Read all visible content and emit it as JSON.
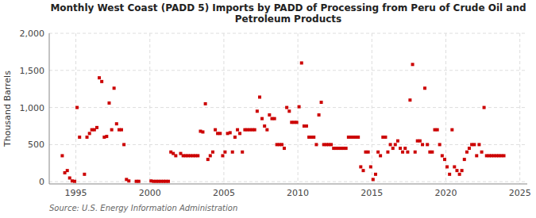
{
  "chart_data": {
    "type": "scatter",
    "title": "Monthly West Coast (PADD 5) Imports by PADD of Processing from Peru of Crude Oil and\nPetroleum Products",
    "ylabel": "Thousand Barrels",
    "source": "Source: U.S. Energy Information Administration",
    "color": "#cc0000",
    "marker": "square",
    "grid": true,
    "xlim": [
      1993.2,
      2025.5
    ],
    "ylim": [
      -30,
      2000
    ],
    "xticks": [
      1995,
      2000,
      2005,
      2010,
      2015,
      2020,
      2025
    ],
    "yticks": [
      0,
      500,
      {
        "value": 1000,
        "label": "1,000"
      },
      {
        "value": 1500,
        "label": "1,500"
      },
      {
        "value": 2000,
        "label": "2,000"
      }
    ],
    "x": [
      1994.08,
      1994.25,
      1994.42,
      1994.58,
      1994.75,
      1994.92,
      1995.08,
      1995.25,
      1995.58,
      1995.75,
      1995.92,
      1996.08,
      1996.25,
      1996.42,
      1996.58,
      1996.75,
      1996.92,
      1997.08,
      1997.25,
      1997.42,
      1997.58,
      1997.75,
      1997.92,
      1998.08,
      1998.25,
      1998.42,
      1998.58,
      1999.08,
      1999.25,
      2000.08,
      2000.25,
      2000.42,
      2000.58,
      2000.75,
      2000.92,
      2001.08,
      2001.25,
      2001.42,
      2001.58,
      2001.75,
      2002.08,
      2002.25,
      2002.42,
      2002.58,
      2002.75,
      2002.92,
      2003.08,
      2003.25,
      2003.42,
      2003.58,
      2003.75,
      2003.92,
      2004.08,
      2004.25,
      2004.42,
      2004.58,
      2004.75,
      2004.92,
      2005.08,
      2005.25,
      2005.42,
      2005.58,
      2005.75,
      2005.92,
      2006.08,
      2006.25,
      2006.42,
      2006.58,
      2006.75,
      2006.92,
      2007.08,
      2007.25,
      2007.42,
      2007.58,
      2007.75,
      2007.92,
      2008.08,
      2008.25,
      2008.42,
      2008.58,
      2008.75,
      2008.92,
      2009.08,
      2009.25,
      2009.42,
      2009.58,
      2009.75,
      2009.92,
      2010.08,
      2010.25,
      2010.42,
      2010.58,
      2010.75,
      2010.92,
      2011.08,
      2011.25,
      2011.42,
      2011.58,
      2011.75,
      2011.92,
      2012.08,
      2012.25,
      2012.42,
      2012.58,
      2012.75,
      2012.92,
      2013.08,
      2013.25,
      2013.42,
      2013.58,
      2013.75,
      2013.92,
      2014.08,
      2014.25,
      2014.42,
      2014.58,
      2014.75,
      2014.92,
      2015.08,
      2015.25,
      2015.42,
      2015.58,
      2015.75,
      2015.92,
      2016.08,
      2016.25,
      2016.42,
      2016.58,
      2016.75,
      2016.92,
      2017.08,
      2017.25,
      2017.42,
      2017.58,
      2017.75,
      2017.92,
      2018.08,
      2018.25,
      2018.42,
      2018.58,
      2018.75,
      2018.92,
      2019.08,
      2019.25,
      2019.42,
      2019.58,
      2019.75,
      2019.92,
      2020.08,
      2020.25,
      2020.42,
      2020.58,
      2020.75,
      2020.92,
      2021.08,
      2021.25,
      2021.42,
      2021.58,
      2021.75,
      2021.92,
      2022.08,
      2022.25,
      2022.42,
      2022.58,
      2022.75,
      2022.92,
      2023.08,
      2023.25,
      2023.42,
      2023.58,
      2023.75,
      2023.92
    ],
    "values": [
      350,
      120,
      150,
      50,
      10,
      5,
      1000,
      600,
      100,
      600,
      650,
      700,
      700,
      730,
      1400,
      1350,
      600,
      610,
      1060,
      700,
      1260,
      780,
      700,
      700,
      500,
      30,
      10,
      5,
      5,
      10,
      5,
      5,
      5,
      5,
      5,
      5,
      5,
      400,
      380,
      350,
      380,
      350,
      350,
      350,
      350,
      350,
      350,
      350,
      680,
      670,
      1050,
      300,
      350,
      400,
      700,
      650,
      650,
      350,
      400,
      650,
      660,
      400,
      600,
      700,
      650,
      400,
      700,
      700,
      700,
      700,
      700,
      950,
      1140,
      850,
      750,
      700,
      900,
      850,
      850,
      500,
      500,
      500,
      450,
      1000,
      950,
      800,
      800,
      800,
      1010,
      1600,
      750,
      750,
      600,
      600,
      600,
      500,
      900,
      1070,
      500,
      500,
      500,
      500,
      450,
      450,
      450,
      450,
      450,
      450,
      600,
      600,
      600,
      600,
      600,
      200,
      150,
      400,
      400,
      200,
      30,
      100,
      400,
      350,
      600,
      600,
      400,
      500,
      450,
      500,
      550,
      450,
      400,
      450,
      400,
      1100,
      1580,
      400,
      550,
      550,
      500,
      1260,
      500,
      400,
      400,
      700,
      700,
      500,
      350,
      300,
      200,
      100,
      700,
      200,
      150,
      100,
      150,
      300,
      400,
      450,
      500,
      500,
      350,
      500,
      400,
      1000,
      350,
      350,
      350,
      350,
      350,
      350,
      350,
      350
    ]
  }
}
